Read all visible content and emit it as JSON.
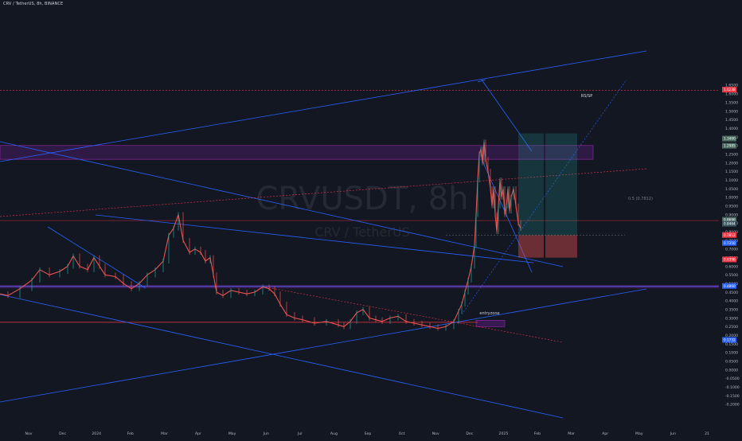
{
  "header": {
    "symbol_line": "CRV / TetherUS, 8h, BINANCE"
  },
  "watermark": {
    "ticker": "CRVUSDT, 8h",
    "name": "CRV / TetherUS"
  },
  "colors": {
    "background": "#131722",
    "up": "#26a69a",
    "down": "#ef5350",
    "trendline": "#2962ff",
    "zone": "#7b1fa2",
    "support": "#f23645"
  },
  "annotations": {
    "rs_sp_label": "RS/SP",
    "entry_label": "entryzone",
    "fib_label": "0.5 (0.7812)"
  },
  "chart_data": {
    "type": "candlestick",
    "title": "CRV / TetherUS, 8h, BINANCE",
    "ylim": [
      -0.25,
      1.7
    ],
    "y_ticks": [
      "1.6500",
      "1.6000",
      "1.5500",
      "1.5000",
      "1.4500",
      "1.4000",
      "1.3500",
      "1.3000",
      "1.2500",
      "1.2000",
      "1.1500",
      "1.1000",
      "1.0500",
      "1.0000",
      "0.9500",
      "0.9000",
      "0.8500",
      "0.8000",
      "0.7500",
      "0.7000",
      "0.6500",
      "0.6000",
      "0.5500",
      "0.5000",
      "0.4500",
      "0.4000",
      "0.3500",
      "0.3000",
      "0.2500",
      "0.2000",
      "0.1500",
      "0.1000",
      "0.0500",
      "0.0000",
      "-0.0500",
      "-0.1000",
      "-0.1500",
      "-0.2000"
    ],
    "x_ticks": [
      "Nov",
      "Dec",
      "2024",
      "Feb",
      "Mar",
      "Apr",
      "May",
      "Jun",
      "Jul",
      "Aug",
      "Sep",
      "Oct",
      "Nov",
      "Dec",
      "2025",
      "Feb",
      "Mar",
      "Apr",
      "May",
      "Jun",
      "21"
    ],
    "price_path": [
      [
        0,
        0.44
      ],
      [
        10,
        0.43
      ],
      [
        25,
        0.47
      ],
      [
        40,
        0.52
      ],
      [
        50,
        0.58
      ],
      [
        62,
        0.55
      ],
      [
        75,
        0.57
      ],
      [
        85,
        0.6
      ],
      [
        92,
        0.66
      ],
      [
        100,
        0.6
      ],
      [
        110,
        0.58
      ],
      [
        118,
        0.65
      ],
      [
        125,
        0.6
      ],
      [
        132,
        0.55
      ],
      [
        145,
        0.54
      ],
      [
        155,
        0.5
      ],
      [
        165,
        0.47
      ],
      [
        175,
        0.5
      ],
      [
        185,
        0.55
      ],
      [
        195,
        0.58
      ],
      [
        205,
        0.63
      ],
      [
        212,
        0.78
      ],
      [
        218,
        0.82
      ],
      [
        224,
        0.9
      ],
      [
        230,
        0.75
      ],
      [
        238,
        0.68
      ],
      [
        245,
        0.7
      ],
      [
        252,
        0.68
      ],
      [
        258,
        0.63
      ],
      [
        264,
        0.65
      ],
      [
        268,
        0.55
      ],
      [
        272,
        0.45
      ],
      [
        280,
        0.43
      ],
      [
        290,
        0.46
      ],
      [
        300,
        0.45
      ],
      [
        310,
        0.44
      ],
      [
        320,
        0.45
      ],
      [
        330,
        0.48
      ],
      [
        338,
        0.47
      ],
      [
        345,
        0.44
      ],
      [
        352,
        0.38
      ],
      [
        360,
        0.32
      ],
      [
        370,
        0.3
      ],
      [
        380,
        0.29
      ],
      [
        395,
        0.27
      ],
      [
        410,
        0.28
      ],
      [
        425,
        0.26
      ],
      [
        432,
        0.25
      ],
      [
        440,
        0.28
      ],
      [
        448,
        0.33
      ],
      [
        456,
        0.35
      ],
      [
        464,
        0.3
      ],
      [
        472,
        0.29
      ],
      [
        480,
        0.28
      ],
      [
        490,
        0.3
      ],
      [
        500,
        0.31
      ],
      [
        510,
        0.28
      ],
      [
        520,
        0.27
      ],
      [
        530,
        0.26
      ],
      [
        540,
        0.25
      ],
      [
        550,
        0.24
      ],
      [
        560,
        0.25
      ],
      [
        570,
        0.28
      ],
      [
        576,
        0.34
      ],
      [
        580,
        0.38
      ],
      [
        584,
        0.45
      ],
      [
        588,
        0.52
      ],
      [
        592,
        0.6
      ],
      [
        596,
        0.72
      ],
      [
        598,
        0.9
      ],
      [
        600,
        1.1
      ],
      [
        602,
        1.25
      ],
      [
        604,
        1.28
      ],
      [
        606,
        1.2
      ],
      [
        608,
        1.32
      ],
      [
        610,
        1.22
      ],
      [
        613,
        1.15
      ],
      [
        616,
        1.05
      ],
      [
        618,
        0.95
      ],
      [
        620,
        1.05
      ],
      [
        622,
        0.9
      ],
      [
        624,
        0.8
      ],
      [
        626,
        0.95
      ],
      [
        628,
        1.1
      ],
      [
        630,
        1.0
      ],
      [
        632,
        1.05
      ],
      [
        634,
        0.9
      ],
      [
        636,
        0.95
      ],
      [
        638,
        1.05
      ],
      [
        640,
        0.92
      ],
      [
        642,
        1.0
      ],
      [
        645,
        1.05
      ],
      [
        648,
        0.95
      ],
      [
        651,
        0.85
      ],
      [
        654,
        0.82
      ]
    ],
    "ref_line_series": [
      [
        0,
        0.55
      ],
      [
        600,
        0.5
      ],
      [
        700,
        0.46
      ],
      [
        750,
        0.45
      ],
      [
        800,
        0.44
      ],
      [
        850,
        0.43
      ],
      [
        900,
        0.42
      ]
    ],
    "ref_line_series_2": [
      [
        0,
        0.28
      ],
      [
        300,
        0.26
      ],
      [
        350,
        0.27
      ],
      [
        500,
        0.27
      ],
      [
        610,
        0.26
      ]
    ],
    "horizontal_levels": [
      1.62,
      0.865,
      0.483
    ],
    "resistance_zone": [
      1.22,
      1.3
    ],
    "entry_zone": [
      0.25,
      0.287
    ],
    "position_levels": {
      "entry": 0.78,
      "stop": 0.65,
      "target": 1.37
    },
    "fib_level": 0.7812,
    "price_tags": [
      "1.6238",
      "1.2985",
      "1.3400",
      "0.8696",
      "0.8464",
      "0.7812",
      "0.7350",
      "0.6396",
      "0.4860",
      "0.1732"
    ]
  }
}
